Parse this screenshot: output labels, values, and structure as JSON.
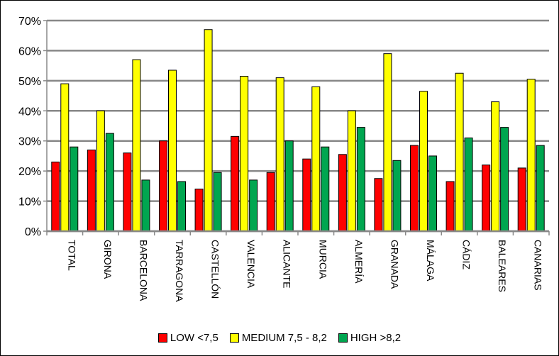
{
  "chart_data": {
    "type": "bar",
    "categories": [
      "TOTAL",
      "GIRONA",
      "BARCELONA",
      "TARRAGONA",
      "CASTELLÓN",
      "VALENCIA",
      "ALICANTE",
      "MURCIA",
      "ALMERÍA",
      "GRANADA",
      "MÁLAGA",
      "CÁDIZ",
      "BALEARES",
      "CANARIAS"
    ],
    "series": [
      {
        "name": "LOW <7,5",
        "color": "#ff0000",
        "values": [
          23,
          27,
          26,
          30,
          14,
          31.5,
          19.5,
          24,
          25.5,
          17.5,
          28.5,
          16.5,
          22,
          21
        ]
      },
      {
        "name": "MEDIUM 7,5 - 8,2",
        "color": "#ffff00",
        "values": [
          49,
          40,
          57,
          53.5,
          67,
          51.5,
          51,
          48,
          40,
          59,
          46.5,
          52.5,
          43,
          50.5
        ]
      },
      {
        "name": "HIGH >8,2",
        "color": "#00a650",
        "values": [
          28,
          32.5,
          17,
          16.5,
          19.5,
          17,
          30,
          28,
          34.5,
          23.5,
          25,
          31,
          34.5,
          28.5
        ]
      }
    ],
    "y_ticks": [
      "0%",
      "10%",
      "20%",
      "30%",
      "40%",
      "50%",
      "60%",
      "70%"
    ],
    "ylim": [
      0,
      70
    ],
    "grid": true,
    "legend_position": "bottom"
  }
}
